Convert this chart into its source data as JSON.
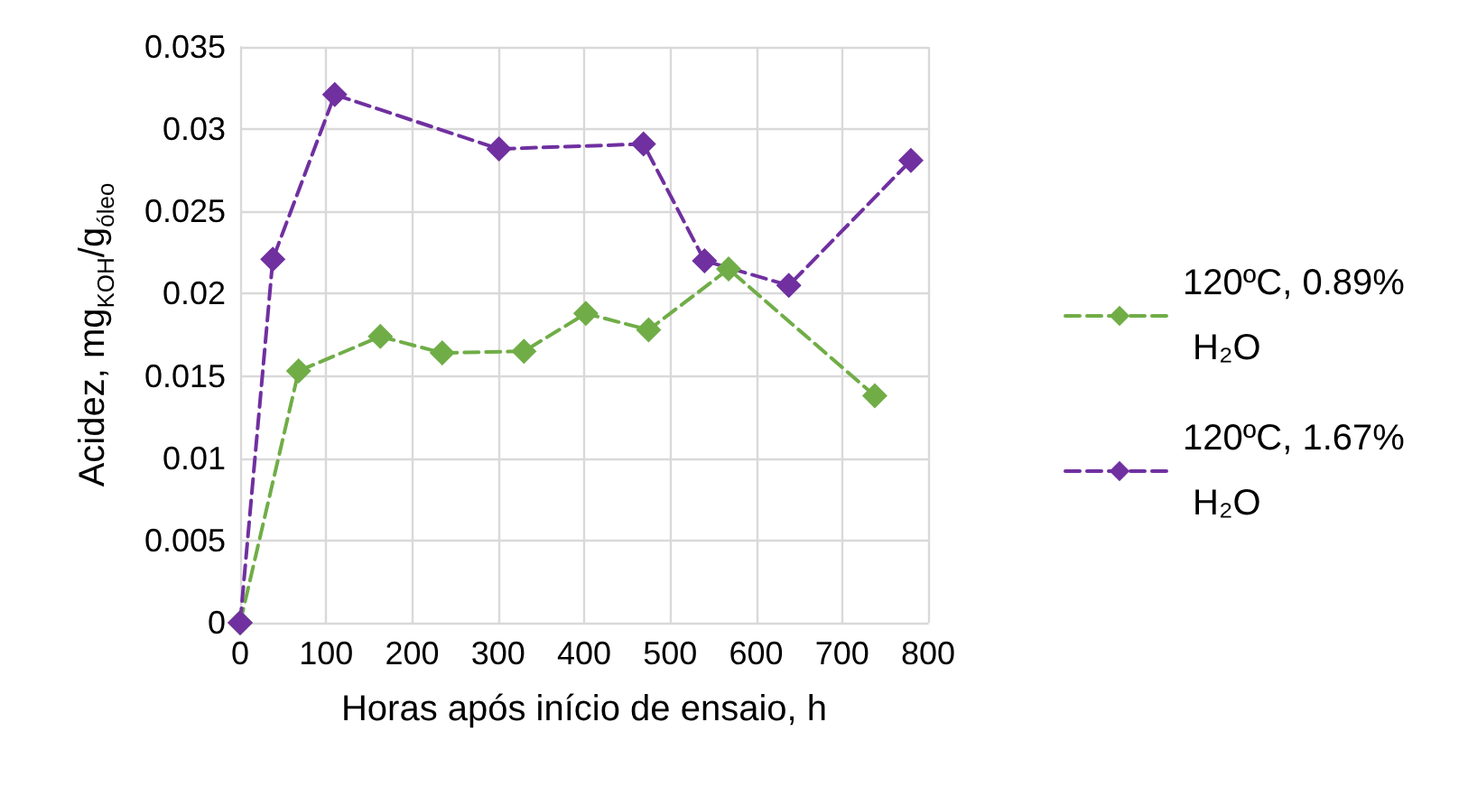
{
  "chart_data": {
    "type": "line",
    "xlabel": "Horas após início de ensaio, h",
    "ylabel": "Acidez, mg$_{KOH}$/g$_{óleo}$",
    "xlim": [
      0,
      800
    ],
    "xticks": [
      0,
      100,
      200,
      300,
      400,
      500,
      600,
      700,
      800
    ],
    "ylim": [
      0,
      0.035
    ],
    "yticks": [
      0,
      0.005,
      0.01,
      0.015,
      0.02,
      0.025,
      0.03,
      0.035
    ],
    "grid": true,
    "legend": "right",
    "marker": "diamond",
    "line_style": "dashed",
    "series": [
      {
        "name": "120ºC, 0.89% H₂O",
        "color": "#70ad47",
        "x": [
          0,
          68,
          163,
          235,
          330,
          402,
          475,
          568,
          738
        ],
        "values": [
          0,
          0.0153,
          0.0174,
          0.0164,
          0.0165,
          0.0188,
          0.0178,
          0.0215,
          0.0138
        ]
      },
      {
        "name": "120ºC, 1.67% H₂O",
        "color": "#7030a0",
        "x": [
          0,
          38,
          110,
          301,
          469,
          540,
          638,
          780
        ],
        "values": [
          0,
          0.0221,
          0.0321,
          0.0288,
          0.0291,
          0.022,
          0.0205,
          0.0281
        ]
      }
    ]
  }
}
